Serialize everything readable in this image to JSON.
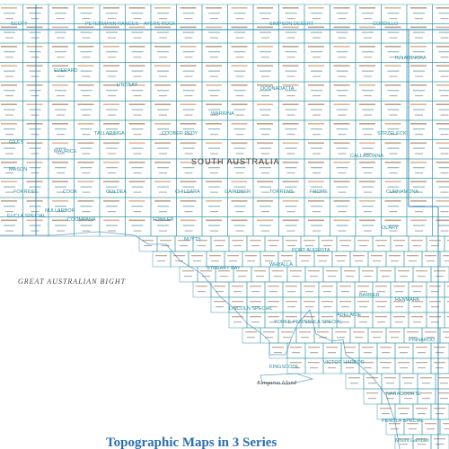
{
  "map": {
    "title": "Topographic Maps in 3 Series",
    "state_label": "SOUTH AUSTRALIA",
    "sea_label": "GREAT AUSTRALIAN BIGHT",
    "island_label": "Kangaroo Island",
    "labels": {
      "scott": "SCOTT",
      "petermann": "PETERMANN RANGES",
      "ayers_rock": "AYERS ROCK",
      "simpson": "SIMPSON DESERT",
      "cordillo": "CORDILLO",
      "innamincka": "INNAMINCKA",
      "everard": "EVERARD",
      "lindsay": "LINDSAY",
      "oodnadatta": "OODNADATTA",
      "warrina": "WARRINA",
      "coober_pedy": "COOBER PEDY",
      "tallaringa": "TALLARINGA",
      "maurice": "MAURICE",
      "giles": "GILES",
      "mason": "MASON",
      "forrest": "FORREST",
      "cook": "COOK",
      "ooldea": "OOLDEA",
      "childara": "CHILDARA",
      "gairdner": "GAIRDNER",
      "torrens": "TORRENS",
      "curnamona": "CURNAMONA",
      "frome": "FROME",
      "callabonna": "CALLABONNA",
      "strzelecki": "STRZELECKI",
      "nullarbor": "NULLARBOR",
      "coompana": "COOMPANA",
      "eucla": "EUCLA SPECIAL",
      "fowler": "FOWLER",
      "nuyts": "NUYTS",
      "streaky": "STREAKY BAY",
      "port_augusta": "PORT AUGUSTA",
      "whyalla": "WHYALLA",
      "lincoln": "LINCOLN SPECIAL",
      "yorke": "YORKE PENINSULA SPECIAL",
      "adelaide": "ADELAIDE",
      "renmark": "RENMARK",
      "naracoorte": "NARACOORTE",
      "penola": "PENOLA SPECIAL",
      "mount_gambier": "Mount Gambier",
      "flinders": "Flinders Ranges",
      "olary": "OLARY",
      "broken_hill": "Broken Hill",
      "pinnaroo": "PINNAROO",
      "barker": "BARKER",
      "kingscote": "KINGSCOTE",
      "victor_harbor": "VICTOR HARBOR"
    }
  }
}
